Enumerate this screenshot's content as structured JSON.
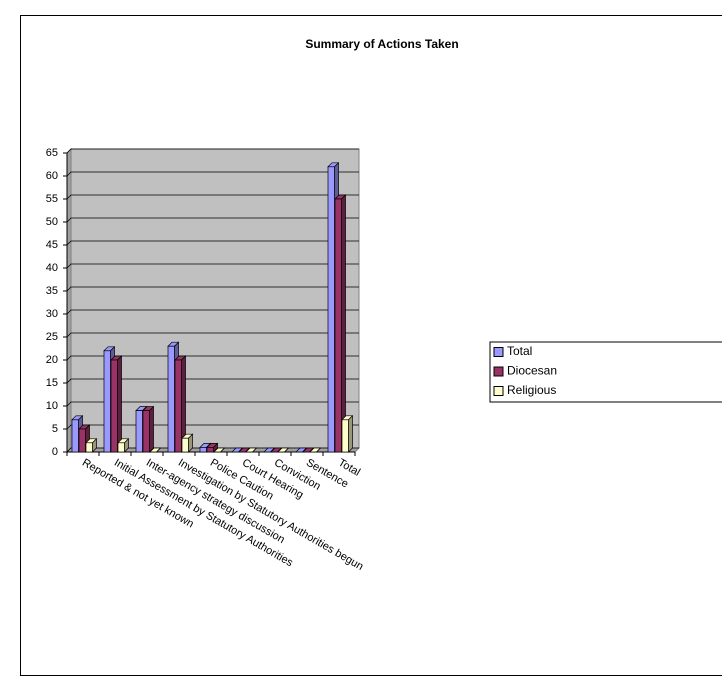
{
  "chart_data": {
    "type": "bar",
    "title": "Summary of Actions Taken",
    "categories": [
      "Reported & not yet known",
      "Initial Assessment by Statutory Authorities",
      "Inter-agency strategy discussion",
      "Investigation by Statutory Authorities begun",
      "Police Caution",
      "Court Hearing",
      "Conviction",
      "Sentence",
      "Total"
    ],
    "series": [
      {
        "name": "Total",
        "color": "#9999ff",
        "values": [
          7,
          22,
          9,
          23,
          1,
          0,
          0,
          0,
          62
        ]
      },
      {
        "name": "Diocesan",
        "color": "#993366",
        "values": [
          5,
          20,
          9,
          20,
          1,
          0,
          0,
          0,
          55
        ]
      },
      {
        "name": "Religious",
        "color": "#ffffcc",
        "values": [
          2,
          2,
          0,
          3,
          0,
          0,
          0,
          0,
          7
        ]
      }
    ],
    "ylim": [
      0,
      65
    ],
    "yticks": [
      0,
      5,
      10,
      15,
      20,
      25,
      30,
      35,
      40,
      45,
      50,
      55,
      60,
      65
    ],
    "grid": true,
    "legend": "right"
  }
}
